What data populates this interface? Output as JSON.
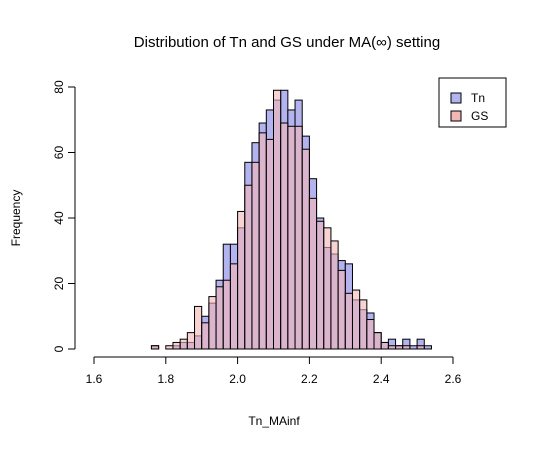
{
  "chart_data": {
    "type": "bar",
    "title": "Distribution of Tn and GS under MA(∞) setting",
    "xlabel": "Tn_MAinf",
    "ylabel": "Frequency",
    "xlim": [
      1.6,
      2.6
    ],
    "ylim": [
      0,
      80
    ],
    "x_ticks": [
      "1.6",
      "1.8",
      "2.0",
      "2.2",
      "2.4",
      "2.6"
    ],
    "y_ticks": [
      "0",
      "20",
      "40",
      "60",
      "80"
    ],
    "bin_width": 0.02,
    "legend_position": "top-right",
    "grid": false,
    "series": [
      {
        "name": "Tn",
        "color": "#b3b3f0",
        "bins": [
          [
            1.76,
            1
          ],
          [
            1.78,
            0
          ],
          [
            1.8,
            0
          ],
          [
            1.82,
            1
          ],
          [
            1.84,
            2
          ],
          [
            1.86,
            2
          ],
          [
            1.88,
            4
          ],
          [
            1.9,
            10
          ],
          [
            1.92,
            14
          ],
          [
            1.94,
            21
          ],
          [
            1.96,
            32
          ],
          [
            1.98,
            32
          ],
          [
            2.0,
            37
          ],
          [
            2.02,
            57
          ],
          [
            2.04,
            63
          ],
          [
            2.06,
            69
          ],
          [
            2.08,
            73
          ],
          [
            2.1,
            76
          ],
          [
            2.12,
            79
          ],
          [
            2.14,
            73
          ],
          [
            2.16,
            76
          ],
          [
            2.18,
            65
          ],
          [
            2.2,
            52
          ],
          [
            2.22,
            40
          ],
          [
            2.24,
            31
          ],
          [
            2.26,
            29
          ],
          [
            2.28,
            27
          ],
          [
            2.3,
            26
          ],
          [
            2.32,
            15
          ],
          [
            2.34,
            12
          ],
          [
            2.36,
            11
          ],
          [
            2.38,
            5
          ],
          [
            2.4,
            2
          ],
          [
            2.42,
            3
          ],
          [
            2.44,
            1
          ],
          [
            2.46,
            3
          ],
          [
            2.48,
            1
          ],
          [
            2.5,
            3
          ],
          [
            2.52,
            1
          ]
        ]
      },
      {
        "name": "GS",
        "color": "#f4b5b5",
        "bins": [
          [
            1.76,
            1
          ],
          [
            1.78,
            0
          ],
          [
            1.8,
            1
          ],
          [
            1.82,
            2
          ],
          [
            1.84,
            3
          ],
          [
            1.86,
            5
          ],
          [
            1.88,
            13
          ],
          [
            1.9,
            8
          ],
          [
            1.92,
            16
          ],
          [
            1.94,
            19
          ],
          [
            1.96,
            21
          ],
          [
            1.98,
            26
          ],
          [
            2.0,
            42
          ],
          [
            2.02,
            50
          ],
          [
            2.04,
            57
          ],
          [
            2.06,
            66
          ],
          [
            2.08,
            64
          ],
          [
            2.1,
            79
          ],
          [
            2.12,
            69
          ],
          [
            2.14,
            68
          ],
          [
            2.16,
            68
          ],
          [
            2.18,
            61
          ],
          [
            2.2,
            46
          ],
          [
            2.22,
            39
          ],
          [
            2.24,
            37
          ],
          [
            2.26,
            33
          ],
          [
            2.28,
            24
          ],
          [
            2.3,
            17
          ],
          [
            2.32,
            18
          ],
          [
            2.34,
            15
          ],
          [
            2.36,
            9
          ],
          [
            2.38,
            5
          ],
          [
            2.4,
            2
          ],
          [
            2.42,
            1
          ],
          [
            2.44,
            1
          ],
          [
            2.46,
            1
          ],
          [
            2.48,
            0
          ],
          [
            2.5,
            1
          ],
          [
            2.52,
            0
          ]
        ]
      }
    ]
  }
}
